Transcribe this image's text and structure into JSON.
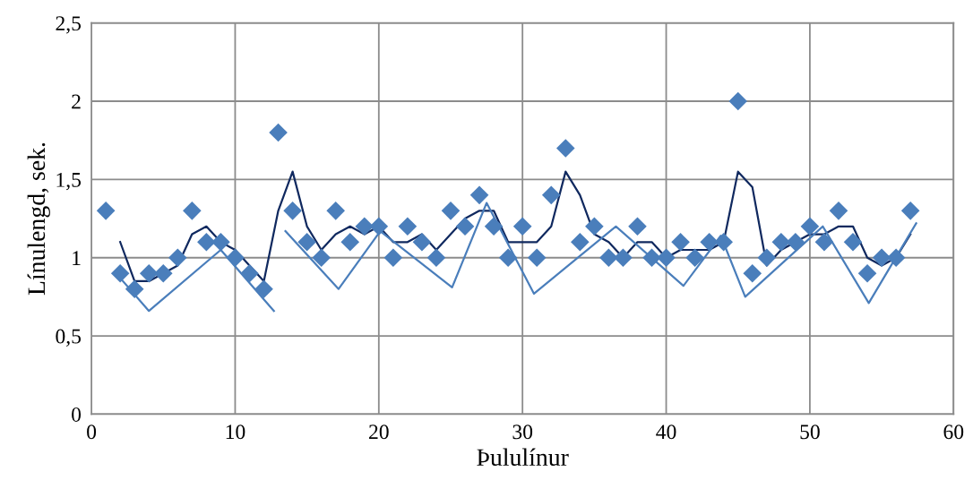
{
  "chart_data": {
    "type": "scatter",
    "xlabel": "Þululínur",
    "ylabel": "Línulengd, sek.",
    "xlim": [
      0,
      60
    ],
    "ylim": [
      0,
      2.5
    ],
    "xticks": [
      0,
      10,
      20,
      30,
      40,
      50,
      60
    ],
    "yticks": [
      0,
      {
        "value": 0.5,
        "label": "0,5"
      },
      1,
      {
        "value": 1.5,
        "label": "1,5"
      },
      2,
      {
        "value": 2.5,
        "label": "2,5"
      }
    ],
    "grid": true,
    "legend": false,
    "series": [
      {
        "marker": "diamond",
        "color": "#4a7ebb",
        "x": [
          1,
          2,
          3,
          4,
          5,
          6,
          7,
          8,
          9,
          10,
          11,
          12,
          13,
          14,
          15,
          16,
          17,
          18,
          19,
          20,
          21,
          22,
          23,
          24,
          25,
          26,
          27,
          28,
          29,
          30,
          31,
          32,
          33,
          34,
          35,
          36,
          37,
          38,
          39,
          40,
          41,
          42,
          43,
          44,
          45,
          46,
          47,
          48,
          49,
          50,
          51,
          52,
          53,
          54,
          55,
          56,
          57
        ],
        "values": [
          1.3,
          0.9,
          0.8,
          0.9,
          0.9,
          1.0,
          1.3,
          1.1,
          1.1,
          1.0,
          0.9,
          0.8,
          1.8,
          1.3,
          1.1,
          1.0,
          1.3,
          1.1,
          1.2,
          1.2,
          1.0,
          1.2,
          1.1,
          1.0,
          1.3,
          1.2,
          1.4,
          1.2,
          1.0,
          1.2,
          1.0,
          1.4,
          1.7,
          1.1,
          1.2,
          1.0,
          1.0,
          1.2,
          1.0,
          1.0,
          1.1,
          1.0,
          1.1,
          1.1,
          2.0,
          0.9,
          1.0,
          1.1,
          1.1,
          1.2,
          1.1,
          1.3,
          1.1,
          0.9,
          1.0,
          1.0,
          1.3
        ]
      },
      {
        "type": "line",
        "color": "#10295f",
        "x": [
          2,
          3,
          4,
          5,
          6,
          7,
          8,
          9,
          10,
          11,
          12,
          13,
          14,
          15,
          16,
          17,
          18,
          19,
          20,
          21,
          22,
          23,
          24,
          25,
          26,
          27,
          28,
          29,
          30,
          31,
          32,
          33,
          34,
          35,
          36,
          37,
          38,
          39,
          40,
          41,
          42,
          43,
          44,
          45,
          46,
          47,
          48,
          49,
          50,
          51,
          52,
          53,
          54,
          55,
          56,
          57
        ],
        "values": [
          1.1,
          0.85,
          0.85,
          0.9,
          0.95,
          1.15,
          1.2,
          1.1,
          1.05,
          0.95,
          0.85,
          1.3,
          1.55,
          1.2,
          1.05,
          1.15,
          1.2,
          1.15,
          1.2,
          1.1,
          1.1,
          1.15,
          1.05,
          1.15,
          1.25,
          1.3,
          1.3,
          1.1,
          1.1,
          1.1,
          1.2,
          1.55,
          1.4,
          1.15,
          1.1,
          1.0,
          1.1,
          1.1,
          1.0,
          1.05,
          1.05,
          1.05,
          1.1,
          1.55,
          1.45,
          0.95,
          1.05,
          1.1,
          1.15,
          1.15,
          1.2,
          1.2,
          1.0,
          0.95,
          1.0,
          1.15
        ]
      },
      {
        "type": "line",
        "color": "#4a7ebb",
        "x": [
          2,
          4,
          9,
          12.7,
          13.1,
          13.5,
          17.2,
          20.1,
          25.1,
          27.5,
          30.8,
          36.5,
          41.2,
          43.8,
          45.5,
          50.9,
          54.1,
          57.4
        ],
        "values": [
          0.87,
          0.66,
          1.05,
          0.66,
          null,
          1.17,
          0.8,
          1.17,
          0.81,
          1.35,
          0.77,
          1.2,
          0.82,
          1.14,
          0.75,
          1.2,
          0.71,
          1.22
        ]
      }
    ]
  }
}
